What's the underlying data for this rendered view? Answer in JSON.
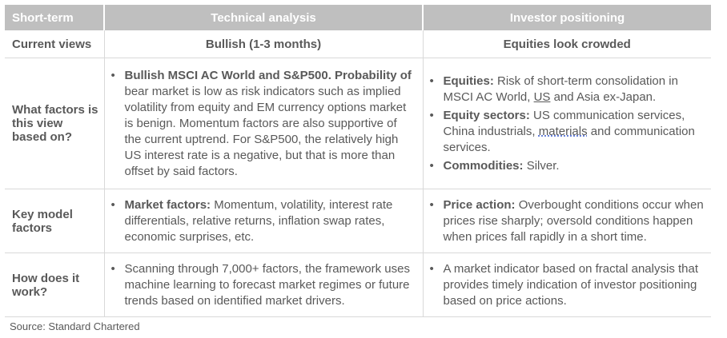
{
  "header": {
    "c0": "Short-term",
    "c1": "Technical analysis",
    "c2": "Investor positioning"
  },
  "current_views": {
    "label": "Current views",
    "technical": "Bullish (1-3 months)",
    "positioning": "Equities look crowded"
  },
  "factors": {
    "label": "What factors is this view based on?",
    "technical": [
      {
        "bold": "Bullish MSCI AC World and S&P500. Probability of",
        "text": "bear market is low as risk indicators such as implied volatility from equity and EM currency options market is benign. Momentum factors are also supportive of the current uptrend. For S&P500, the relatively high US interest rate is a negative, but that is more than offset by said factors."
      }
    ],
    "positioning": [
      {
        "bold": "Equities:",
        "text_a": "Risk of short-term consolidation in MSCI AC World, ",
        "underline": "US",
        "text_b": " and Asia ex-Japan."
      },
      {
        "bold": "Equity sectors:",
        "text_a": "US communication services, China industrials, ",
        "underline": "materials",
        "text_b": " and communication services."
      },
      {
        "bold": "Commodities:",
        "text_a": "Silver.",
        "underline": "",
        "text_b": ""
      }
    ]
  },
  "model": {
    "label": "Key model factors",
    "technical": [
      {
        "bold": "Market factors:",
        "text": "Momentum, volatility, interest rate differentials, relative returns, inflation swap rates, economic surprises, etc."
      }
    ],
    "positioning": [
      {
        "bold": "Price action:",
        "text": "Overbought conditions occur when prices rise sharply; oversold conditions happen when prices fall rapidly in a short time."
      }
    ]
  },
  "how": {
    "label": "How does it work?",
    "technical": [
      {
        "text": "Scanning through 7,000+ factors, the framework uses machine learning to forecast market regimes or future trends based on identified market drivers."
      }
    ],
    "positioning": [
      {
        "text": "A market indicator based on fractal analysis that provides timely indication of investor positioning based on price actions."
      }
    ]
  },
  "bullet_glyph": "•",
  "source": "Source: Standard Chartered",
  "colors": {
    "header_bg": "#bfbfbf",
    "text": "#595959",
    "rule": "#d9d9d9"
  }
}
